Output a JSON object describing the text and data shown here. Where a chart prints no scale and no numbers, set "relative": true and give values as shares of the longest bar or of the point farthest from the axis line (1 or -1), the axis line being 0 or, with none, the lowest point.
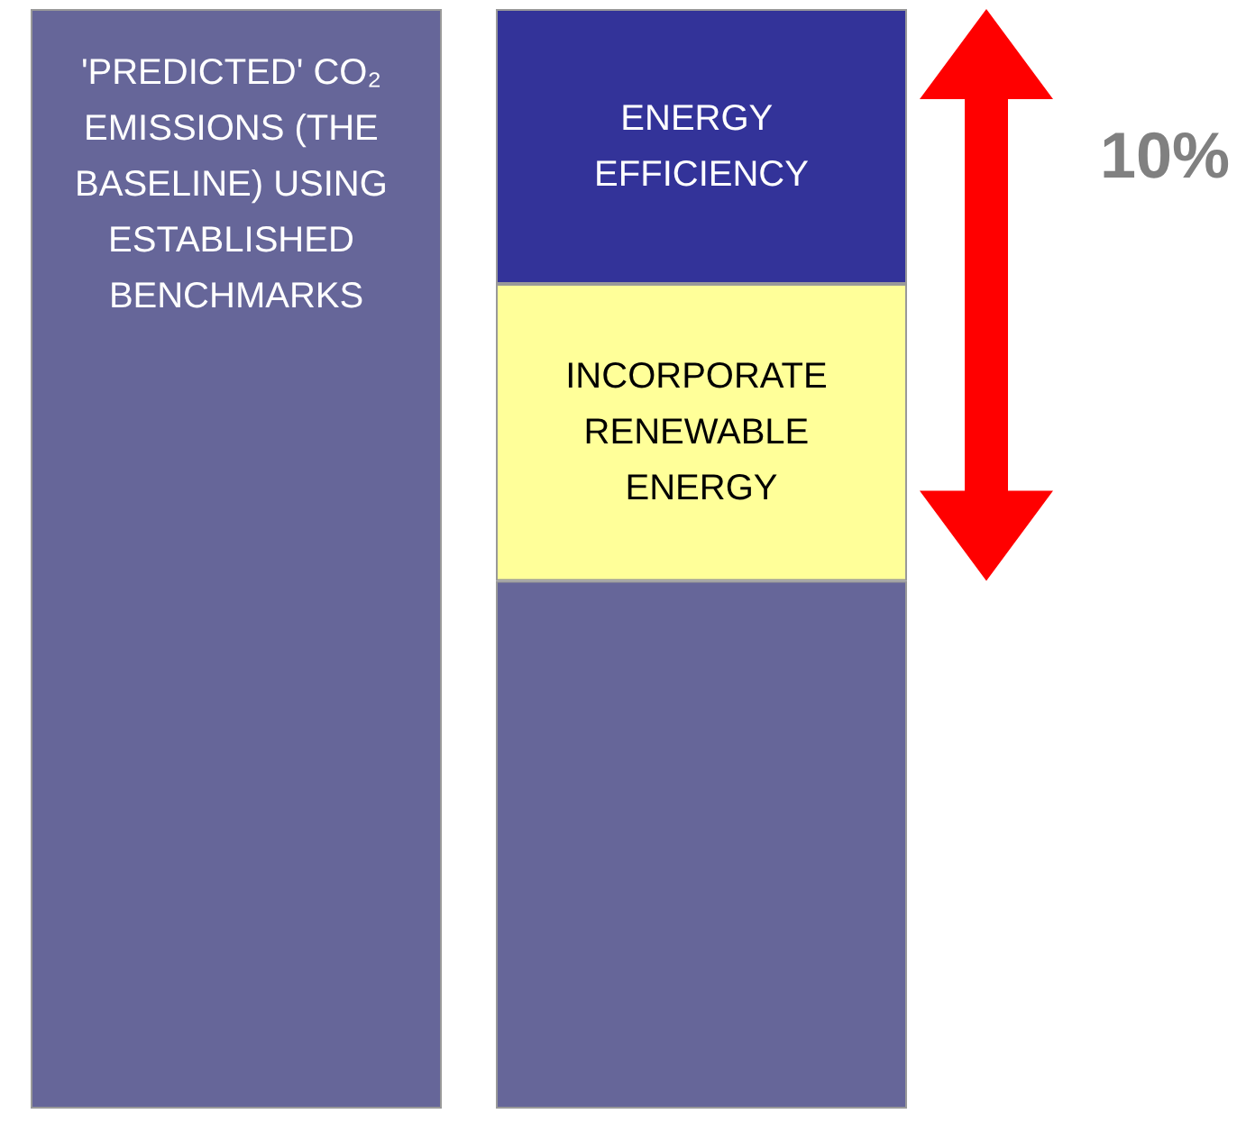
{
  "chart_data": {
    "type": "bar",
    "relative": true,
    "stacked": true,
    "categories": [
      null,
      null
    ],
    "series": [
      {
        "name": "'PREDICTED' CO₂ EMISSIONS (THE BASELINE) USING ESTABLISHED BENCHMARKS",
        "color": "#666699",
        "values": [
          1,
          null
        ]
      },
      {
        "color": "#666699",
        "values": [
          null,
          0.48
        ]
      },
      {
        "name": "INCORPORATE RENEWABLE ENERGY",
        "color": "#ffff99",
        "values": [
          null,
          0.27
        ]
      },
      {
        "name": "ENERGY EFFICIENCY",
        "color": "#333399",
        "values": [
          null,
          0.25
        ]
      }
    ],
    "annotations": [
      "10%"
    ]
  }
}
